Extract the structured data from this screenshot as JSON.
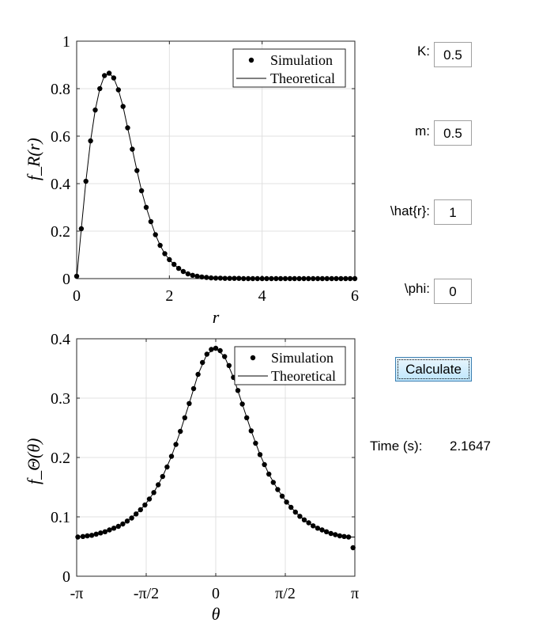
{
  "controls": {
    "k": {
      "label": "K:",
      "value": "0.5"
    },
    "m": {
      "label": "m:",
      "value": "0.5"
    },
    "rhat": {
      "label": "\\hat{r}:",
      "value": "1"
    },
    "phi": {
      "label": "\\phi:",
      "value": "0"
    },
    "calculate_label": "Calculate",
    "time_label": "Time (s):",
    "time_value": "2.1647"
  },
  "chart_data": [
    {
      "type": "line",
      "ylabel": "f_R(r)",
      "xlabel": "r",
      "xlim": [
        0,
        6
      ],
      "ylim": [
        0,
        1
      ],
      "x_ticks": [
        "0",
        "2",
        "4",
        "6"
      ],
      "y_ticks": [
        "0",
        "0.2",
        "0.4",
        "0.6",
        "0.8",
        "1"
      ],
      "grid": true,
      "legend_position": "top-right",
      "series": [
        {
          "name": "Simulation",
          "style": "markers",
          "x": [
            0.0,
            0.1,
            0.2,
            0.3,
            0.4,
            0.5,
            0.6,
            0.7,
            0.8,
            0.9,
            1.0,
            1.1,
            1.2,
            1.3,
            1.4,
            1.5,
            1.6,
            1.7,
            1.8,
            1.9,
            2.0,
            2.1,
            2.2,
            2.3,
            2.4,
            2.5,
            2.6,
            2.7,
            2.8,
            2.9,
            3.0,
            3.1,
            3.2,
            3.3,
            3.4,
            3.5,
            3.6,
            3.7,
            3.8,
            3.9,
            4.0,
            4.1,
            4.2,
            4.3,
            4.4,
            4.5,
            4.6,
            4.7,
            4.8,
            4.9,
            5.0,
            5.1,
            5.2,
            5.3,
            5.4,
            5.5,
            5.6,
            5.7,
            5.8,
            5.9,
            6.0
          ],
          "y": [
            0.01,
            0.21,
            0.41,
            0.58,
            0.71,
            0.8,
            0.855,
            0.865,
            0.845,
            0.795,
            0.725,
            0.635,
            0.545,
            0.455,
            0.37,
            0.3,
            0.24,
            0.185,
            0.14,
            0.105,
            0.08,
            0.06,
            0.043,
            0.03,
            0.02,
            0.014,
            0.01,
            0.007,
            0.005,
            0.003,
            0.002,
            0.002,
            0.001,
            0.001,
            0.001,
            0.001,
            0.0,
            0.0,
            0.0,
            0.0,
            0.0,
            0.0,
            0.0,
            0.0,
            0.0,
            0.0,
            0.0,
            0.0,
            0.0,
            0.0,
            0.0,
            0.0,
            0.0,
            0.0,
            0.0,
            0.0,
            0.0,
            0.0,
            0.0,
            0.0,
            0.0
          ]
        },
        {
          "name": "Theoretical",
          "style": "line",
          "x": [
            0.0,
            0.1,
            0.2,
            0.3,
            0.4,
            0.5,
            0.6,
            0.7,
            0.8,
            0.9,
            1.0,
            1.1,
            1.2,
            1.3,
            1.4,
            1.5,
            1.6,
            1.7,
            1.8,
            1.9,
            2.0,
            2.1,
            2.2,
            2.3,
            2.4,
            2.5,
            2.6,
            2.7,
            2.8,
            2.9,
            3.0,
            3.2,
            3.4,
            3.6,
            3.8,
            4.0,
            4.5,
            5.0,
            5.5,
            6.0
          ],
          "y": [
            0.0,
            0.21,
            0.41,
            0.58,
            0.71,
            0.8,
            0.855,
            0.865,
            0.845,
            0.795,
            0.725,
            0.635,
            0.545,
            0.455,
            0.37,
            0.3,
            0.24,
            0.185,
            0.14,
            0.105,
            0.08,
            0.06,
            0.043,
            0.03,
            0.02,
            0.014,
            0.01,
            0.007,
            0.005,
            0.003,
            0.002,
            0.001,
            0.001,
            0.0,
            0.0,
            0.0,
            0.0,
            0.0,
            0.0,
            0.0
          ]
        }
      ]
    },
    {
      "type": "line",
      "ylabel": "f_Θ(θ)",
      "xlabel": "θ",
      "xlim": [
        -3.14159,
        3.14159
      ],
      "ylim": [
        0,
        0.4
      ],
      "x_ticks": [
        "-π",
        "-π/2",
        "0",
        "π/2",
        "π"
      ],
      "y_ticks": [
        "0",
        "0.1",
        "0.2",
        "0.3",
        "0.4"
      ],
      "grid": true,
      "legend_position": "top-right",
      "series": [
        {
          "name": "Simulation",
          "style": "markers",
          "x": [
            -3.115,
            -3.0,
            -2.9,
            -2.8,
            -2.7,
            -2.6,
            -2.5,
            -2.4,
            -2.3,
            -2.2,
            -2.1,
            -2.0,
            -1.9,
            -1.8,
            -1.7,
            -1.6,
            -1.5,
            -1.4,
            -1.3,
            -1.2,
            -1.1,
            -1.0,
            -0.9,
            -0.8,
            -0.7,
            -0.6,
            -0.5,
            -0.4,
            -0.3,
            -0.2,
            -0.1,
            0.0,
            0.1,
            0.2,
            0.3,
            0.4,
            0.5,
            0.6,
            0.7,
            0.8,
            0.9,
            1.0,
            1.1,
            1.2,
            1.3,
            1.4,
            1.5,
            1.6,
            1.7,
            1.8,
            1.9,
            2.0,
            2.1,
            2.2,
            2.3,
            2.4,
            2.5,
            2.6,
            2.7,
            2.8,
            2.9,
            3.0,
            3.1
          ],
          "y": [
            0.066,
            0.067,
            0.068,
            0.069,
            0.071,
            0.073,
            0.075,
            0.078,
            0.081,
            0.084,
            0.088,
            0.093,
            0.098,
            0.105,
            0.112,
            0.12,
            0.13,
            0.141,
            0.154,
            0.168,
            0.184,
            0.202,
            0.222,
            0.244,
            0.267,
            0.291,
            0.316,
            0.34,
            0.36,
            0.374,
            0.382,
            0.384,
            0.38,
            0.37,
            0.355,
            0.335,
            0.313,
            0.29,
            0.267,
            0.245,
            0.224,
            0.205,
            0.188,
            0.172,
            0.158,
            0.146,
            0.135,
            0.125,
            0.116,
            0.108,
            0.101,
            0.095,
            0.09,
            0.085,
            0.081,
            0.078,
            0.075,
            0.072,
            0.07,
            0.068,
            0.067,
            0.066,
            0.048
          ]
        },
        {
          "name": "Theoretical",
          "style": "line",
          "x": [
            -3.14159,
            -3.0,
            -2.8,
            -2.6,
            -2.4,
            -2.2,
            -2.0,
            -1.8,
            -1.6,
            -1.4,
            -1.2,
            -1.0,
            -0.8,
            -0.6,
            -0.4,
            -0.2,
            0.0,
            0.2,
            0.4,
            0.6,
            0.8,
            1.0,
            1.2,
            1.4,
            1.6,
            1.8,
            2.0,
            2.2,
            2.4,
            2.6,
            2.8,
            3.0,
            3.14159
          ],
          "y": [
            0.066,
            0.067,
            0.069,
            0.073,
            0.078,
            0.084,
            0.093,
            0.105,
            0.12,
            0.141,
            0.168,
            0.202,
            0.244,
            0.291,
            0.34,
            0.374,
            0.384,
            0.37,
            0.335,
            0.29,
            0.245,
            0.205,
            0.172,
            0.146,
            0.125,
            0.108,
            0.095,
            0.085,
            0.078,
            0.072,
            0.068,
            0.066,
            0.066
          ]
        }
      ]
    }
  ]
}
